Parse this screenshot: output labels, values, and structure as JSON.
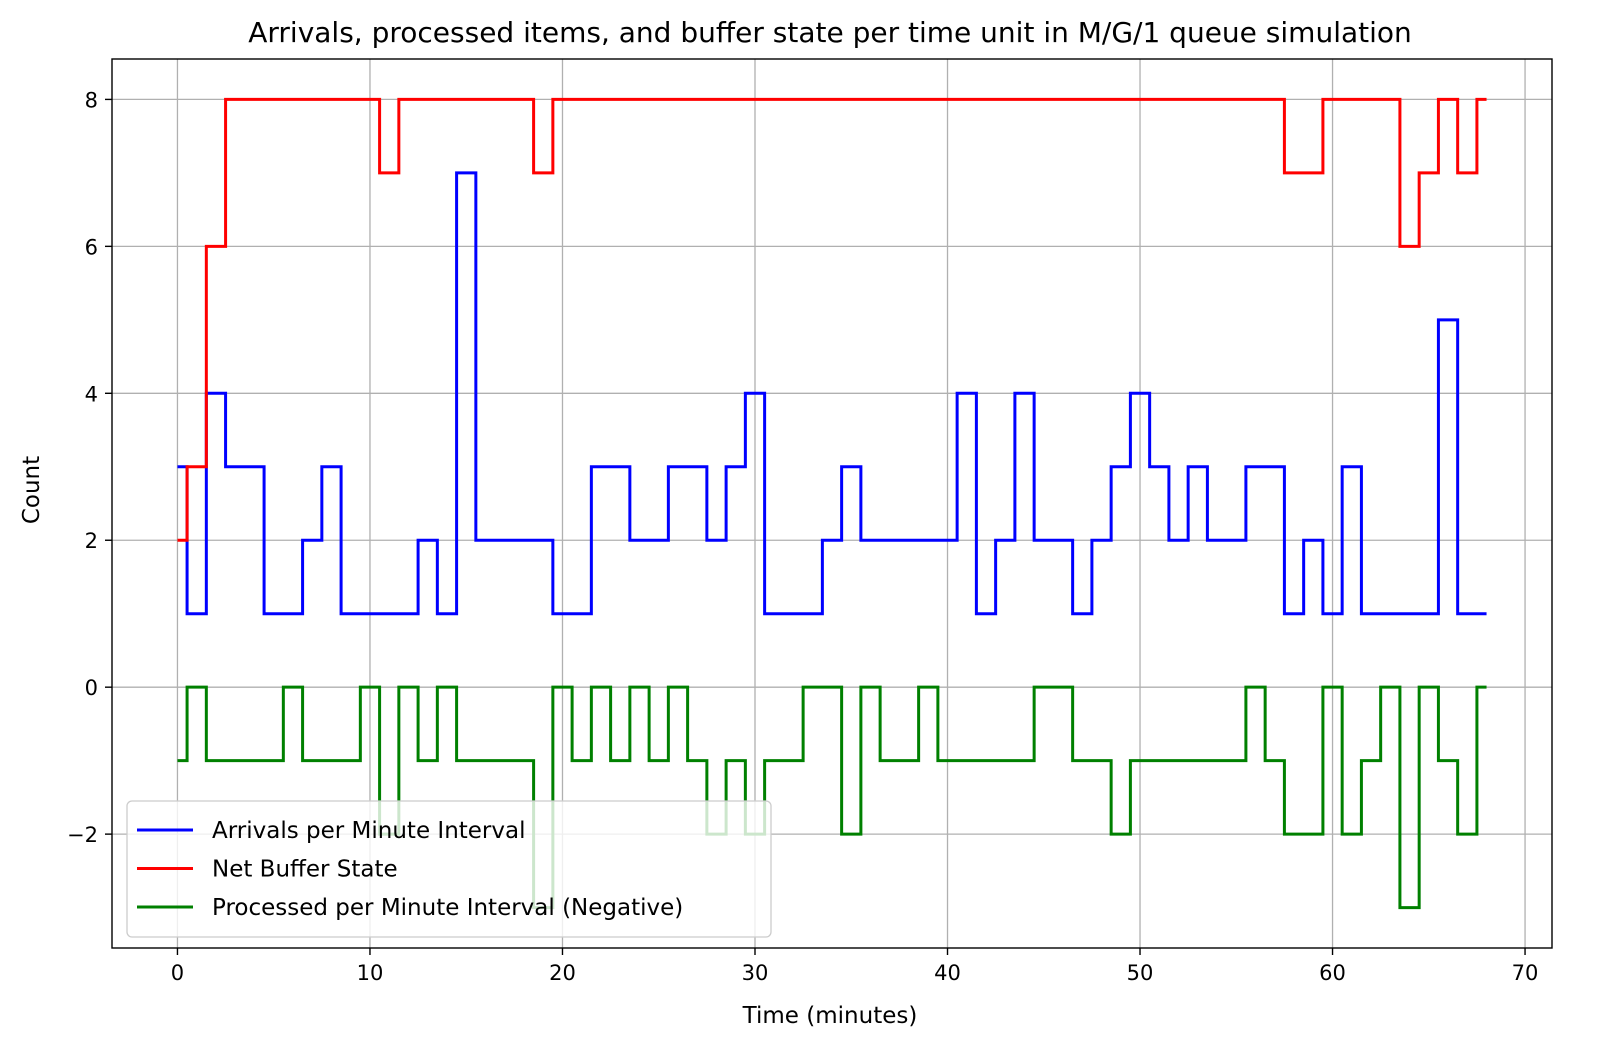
{
  "chart_data": {
    "type": "line",
    "step": "mid",
    "title": "Arrivals, processed items, and buffer state per time unit in M/G/1 queue simulation",
    "xlabel": "Time (minutes)",
    "ylabel": "Count",
    "xlim": [
      -3.4,
      71.4
    ],
    "ylim": [
      -3.55,
      8.55
    ],
    "xticks": [
      0,
      10,
      20,
      30,
      40,
      50,
      60,
      70
    ],
    "xtick_labels": [
      "0",
      "10",
      "20",
      "30",
      "40",
      "50",
      "60",
      "70"
    ],
    "yticks": [
      -2,
      0,
      2,
      4,
      6,
      8
    ],
    "ytick_labels": [
      "−2",
      "0",
      "2",
      "4",
      "6",
      "8"
    ],
    "grid": true,
    "legend_position": "lower-left",
    "x": [
      0,
      1,
      2,
      3,
      4,
      5,
      6,
      7,
      8,
      9,
      10,
      11,
      12,
      13,
      14,
      15,
      16,
      17,
      18,
      19,
      20,
      21,
      22,
      23,
      24,
      25,
      26,
      27,
      28,
      29,
      30,
      31,
      32,
      33,
      34,
      35,
      36,
      37,
      38,
      39,
      40,
      41,
      42,
      43,
      44,
      45,
      46,
      47,
      48,
      49,
      50,
      51,
      52,
      53,
      54,
      55,
      56,
      57,
      58,
      59,
      60,
      61,
      62,
      63,
      64,
      65,
      66,
      67,
      68
    ],
    "series": [
      {
        "name": "Arrivals per Minute Interval",
        "color": "#0000ff",
        "values": [
          3,
          1,
          4,
          3,
          3,
          1,
          1,
          2,
          3,
          1,
          1,
          1,
          1,
          2,
          1,
          7,
          2,
          2,
          2,
          2,
          1,
          1,
          3,
          3,
          2,
          2,
          3,
          3,
          2,
          3,
          4,
          1,
          1,
          1,
          2,
          3,
          2,
          2,
          2,
          2,
          2,
          4,
          1,
          2,
          4,
          2,
          2,
          1,
          2,
          3,
          4,
          3,
          2,
          3,
          2,
          2,
          3,
          3,
          1,
          2,
          1,
          3,
          1,
          1,
          1,
          1,
          5,
          1,
          1
        ]
      },
      {
        "name": "Net Buffer State",
        "color": "#ff0000",
        "values": [
          2,
          3,
          6,
          8,
          8,
          8,
          8,
          8,
          8,
          8,
          8,
          7,
          8,
          8,
          8,
          8,
          8,
          8,
          8,
          7,
          8,
          8,
          8,
          8,
          8,
          8,
          8,
          8,
          8,
          8,
          8,
          8,
          8,
          8,
          8,
          8,
          8,
          8,
          8,
          8,
          8,
          8,
          8,
          8,
          8,
          8,
          8,
          8,
          8,
          8,
          8,
          8,
          8,
          8,
          8,
          8,
          8,
          8,
          7,
          7,
          8,
          8,
          8,
          8,
          6,
          7,
          8,
          7,
          8
        ]
      },
      {
        "name": "Processed per Minute Interval (Negative)",
        "color": "#008000",
        "values": [
          -1,
          0,
          -1,
          -1,
          -1,
          -1,
          0,
          -1,
          -1,
          -1,
          0,
          -2,
          0,
          -1,
          0,
          -1,
          -1,
          -1,
          -1,
          -3,
          0,
          -1,
          0,
          -1,
          0,
          -1,
          0,
          -1,
          -2,
          -1,
          -2,
          -1,
          -1,
          0,
          0,
          -2,
          0,
          -1,
          -1,
          0,
          -1,
          -1,
          -1,
          -1,
          -1,
          0,
          0,
          -1,
          -1,
          -2,
          -1,
          -1,
          -1,
          -1,
          -1,
          -1,
          0,
          -1,
          -2,
          -2,
          0,
          -2,
          -1,
          0,
          -3,
          0,
          -1,
          -2,
          0
        ]
      }
    ]
  }
}
